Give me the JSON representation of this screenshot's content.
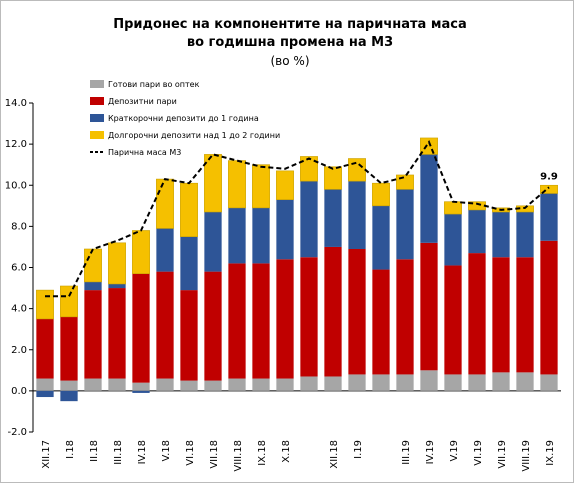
{
  "chart_data": {
    "type": "bar",
    "stacked": true,
    "title": [
      "Придонес на компонентите на паричната маса",
      "во годишна промена на М3"
    ],
    "subtitle": "(во %)",
    "categories": [
      "XII.17",
      "I.18",
      "II.18",
      "III.18",
      "IV.18",
      "V.18",
      "VI.18",
      "VII.18",
      "VIII.18",
      "IX.18",
      "X.18",
      null,
      "XII.18",
      "I.19",
      null,
      "III.19",
      "IV.19",
      "V.19",
      "VI.19",
      "VII.19",
      "VIII.19",
      "IX.19"
    ],
    "series": [
      {
        "name": "Готови пари во оптек",
        "color": "#a6a6a6",
        "values": [
          0.6,
          0.5,
          0.6,
          0.6,
          0.4,
          0.6,
          0.5,
          0.5,
          0.6,
          0.6,
          0.6,
          0.7,
          0.7,
          0.8,
          0.8,
          0.8,
          1.0,
          0.8,
          0.8,
          0.9,
          0.9,
          0.8
        ]
      },
      {
        "name": "Депозитни пари",
        "color": "#c00000",
        "values": [
          2.9,
          3.1,
          4.3,
          4.4,
          5.3,
          5.2,
          4.4,
          5.3,
          5.6,
          5.6,
          5.8,
          5.8,
          6.3,
          6.1,
          5.1,
          5.6,
          6.2,
          5.3,
          5.9,
          5.6,
          5.6,
          6.5
        ]
      },
      {
        "name": "Краткорочни депозити до 1 година",
        "color": "#2e5597",
        "values": [
          -0.3,
          -0.5,
          0.4,
          0.2,
          -0.1,
          2.1,
          2.6,
          2.9,
          2.7,
          2.7,
          2.9,
          3.7,
          2.8,
          3.3,
          3.1,
          3.4,
          4.3,
          2.5,
          2.1,
          2.2,
          2.2,
          2.3
        ]
      },
      {
        "name": "Долгорочни депозити над 1 до 2 години",
        "color": "#f5c000",
        "values": [
          1.4,
          1.5,
          1.6,
          2.0,
          2.1,
          2.4,
          2.6,
          2.8,
          2.3,
          2.1,
          1.4,
          1.2,
          1.1,
          1.1,
          1.1,
          0.7,
          0.8,
          0.6,
          0.4,
          0.2,
          0.3,
          0.4
        ]
      },
      {
        "name": "Парична маса М3",
        "type": "line",
        "color": "#000000",
        "values": [
          4.6,
          4.6,
          6.9,
          7.3,
          7.8,
          10.3,
          10.1,
          11.5,
          11.2,
          10.9,
          10.8,
          11.3,
          10.8,
          11.1,
          10.1,
          10.4,
          12.1,
          9.2,
          9.1,
          8.8,
          8.9,
          9.9
        ],
        "value_labels": [
          null,
          null,
          null,
          null,
          null,
          null,
          null,
          null,
          null,
          null,
          null,
          null,
          null,
          null,
          null,
          null,
          null,
          null,
          null,
          null,
          null,
          "9.9"
        ]
      }
    ],
    "ylim": [
      -2,
      14
    ],
    "yticks": [
      {
        "value": -2,
        "label": "-2.0"
      },
      {
        "value": 0,
        "label": "0.0"
      },
      {
        "value": 2,
        "label": "2.0"
      },
      {
        "value": 4,
        "label": "4.0"
      },
      {
        "value": 6,
        "label": "6.0"
      },
      {
        "value": 8,
        "label": "8.0"
      },
      {
        "value": 10,
        "label": "10.0"
      },
      {
        "value": 12,
        "label": "12.0"
      },
      {
        "value": 14,
        "label": "14.0"
      }
    ],
    "grid": false,
    "legend": "upper left"
  }
}
